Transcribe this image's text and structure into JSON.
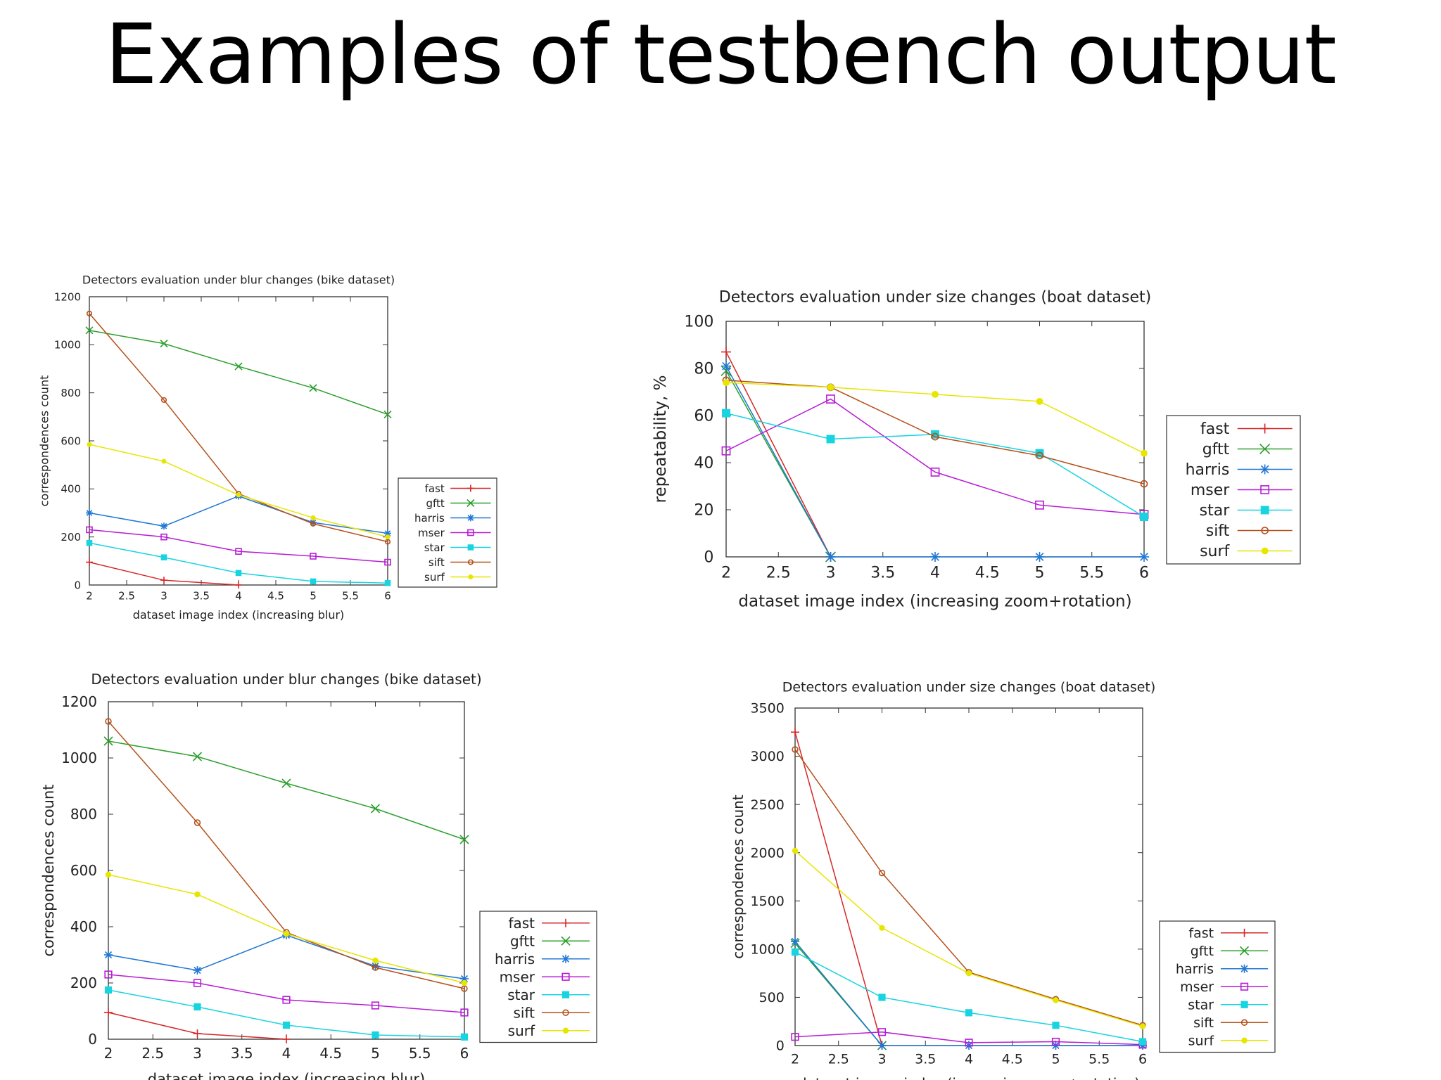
{
  "slide": {
    "title": "Examples of testbench output"
  },
  "colors": {
    "fast": "#d62728",
    "gftt": "#2ca02c",
    "harris": "#1f77d4",
    "mser": "#b81cd6",
    "star": "#17d4e0",
    "sift": "#b5501a",
    "surf": "#e6e600"
  },
  "chart_data": [
    {
      "type": "line",
      "title": "Detectors evaluation under blur changes (bike dataset)",
      "xlabel": "dataset image index (increasing blur)",
      "ylabel": "correspondences count",
      "x": [
        2,
        3,
        4,
        5,
        6
      ],
      "xlim": [
        2,
        6
      ],
      "ylim": [
        0,
        1200
      ],
      "xticks": [
        2,
        2.5,
        3,
        3.5,
        4,
        4.5,
        5,
        5.5,
        6
      ],
      "yticks": [
        0,
        200,
        400,
        600,
        800,
        1000,
        1200
      ],
      "legend": "right-bottom",
      "series": [
        {
          "name": "fast",
          "values": [
            95,
            20,
            0,
            null,
            null
          ]
        },
        {
          "name": "gftt",
          "values": [
            1060,
            1005,
            910,
            820,
            710
          ]
        },
        {
          "name": "harris",
          "values": [
            300,
            245,
            370,
            260,
            215
          ]
        },
        {
          "name": "mser",
          "values": [
            230,
            200,
            140,
            120,
            95
          ]
        },
        {
          "name": "star",
          "values": [
            175,
            115,
            50,
            15,
            8
          ]
        },
        {
          "name": "sift",
          "values": [
            1130,
            770,
            380,
            255,
            180
          ]
        },
        {
          "name": "surf",
          "values": [
            585,
            515,
            375,
            280,
            200
          ]
        }
      ]
    },
    {
      "type": "line",
      "title": "Detectors evaluation under size changes (boat dataset)",
      "xlabel": "dataset image index (increasing zoom+rotation)",
      "ylabel": "repeatability, %",
      "x": [
        2,
        3,
        4,
        5,
        6
      ],
      "xlim": [
        2,
        6
      ],
      "ylim": [
        0,
        100
      ],
      "xticks": [
        2,
        2.5,
        3,
        3.5,
        4,
        4.5,
        5,
        5.5,
        6
      ],
      "yticks": [
        0,
        20,
        40,
        60,
        80,
        100
      ],
      "legend": "right-middle",
      "series": [
        {
          "name": "fast",
          "values": [
            87,
            0,
            null,
            null,
            null
          ]
        },
        {
          "name": "gftt",
          "values": [
            79,
            0,
            null,
            null,
            null
          ]
        },
        {
          "name": "harris",
          "values": [
            81,
            0,
            0,
            0,
            0
          ]
        },
        {
          "name": "mser",
          "values": [
            45,
            67,
            36,
            22,
            18
          ]
        },
        {
          "name": "star",
          "values": [
            61,
            50,
            52,
            44,
            17
          ]
        },
        {
          "name": "sift",
          "values": [
            75,
            72,
            51,
            43,
            31
          ]
        },
        {
          "name": "surf",
          "values": [
            74,
            72,
            69,
            66,
            44
          ]
        }
      ]
    },
    {
      "type": "line",
      "title": "Detectors evaluation under blur changes (bike dataset)",
      "xlabel": "dataset image index (increasing blur)",
      "ylabel": "correspondences count",
      "x": [
        2,
        3,
        4,
        5,
        6
      ],
      "xlim": [
        2,
        6
      ],
      "ylim": [
        0,
        1200
      ],
      "xticks": [
        2,
        2.5,
        3,
        3.5,
        4,
        4.5,
        5,
        5.5,
        6
      ],
      "yticks": [
        0,
        200,
        400,
        600,
        800,
        1000,
        1200
      ],
      "legend": "right-bottom",
      "series": [
        {
          "name": "fast",
          "values": [
            95,
            20,
            0,
            null,
            null
          ]
        },
        {
          "name": "gftt",
          "values": [
            1060,
            1005,
            910,
            820,
            710
          ]
        },
        {
          "name": "harris",
          "values": [
            300,
            245,
            370,
            260,
            215
          ]
        },
        {
          "name": "mser",
          "values": [
            230,
            200,
            140,
            120,
            95
          ]
        },
        {
          "name": "star",
          "values": [
            175,
            115,
            50,
            15,
            8
          ]
        },
        {
          "name": "sift",
          "values": [
            1130,
            770,
            380,
            255,
            180
          ]
        },
        {
          "name": "surf",
          "values": [
            585,
            515,
            375,
            280,
            200
          ]
        }
      ]
    },
    {
      "type": "line",
      "title": "Detectors evaluation under size changes (boat dataset)",
      "xlabel": "dataset image index (increasing zoom+rotation)",
      "ylabel": "correspondences count",
      "x": [
        2,
        3,
        4,
        5,
        6
      ],
      "xlim": [
        2,
        6
      ],
      "ylim": [
        0,
        3500
      ],
      "xticks": [
        2,
        2.5,
        3,
        3.5,
        4,
        4.5,
        5,
        5.5,
        6
      ],
      "yticks": [
        0,
        500,
        1000,
        1500,
        2000,
        2500,
        3000,
        3500
      ],
      "legend": "right-bottom",
      "series": [
        {
          "name": "fast",
          "values": [
            3250,
            0,
            null,
            null,
            null
          ]
        },
        {
          "name": "gftt",
          "values": [
            1060,
            0,
            null,
            null,
            null
          ]
        },
        {
          "name": "harris",
          "values": [
            1080,
            0,
            0,
            0,
            0
          ]
        },
        {
          "name": "mser",
          "values": [
            90,
            140,
            30,
            40,
            10
          ]
        },
        {
          "name": "star",
          "values": [
            970,
            500,
            340,
            210,
            40
          ]
        },
        {
          "name": "sift",
          "values": [
            3070,
            1790,
            760,
            480,
            210
          ]
        },
        {
          "name": "surf",
          "values": [
            2020,
            1220,
            750,
            470,
            200
          ]
        }
      ]
    }
  ]
}
